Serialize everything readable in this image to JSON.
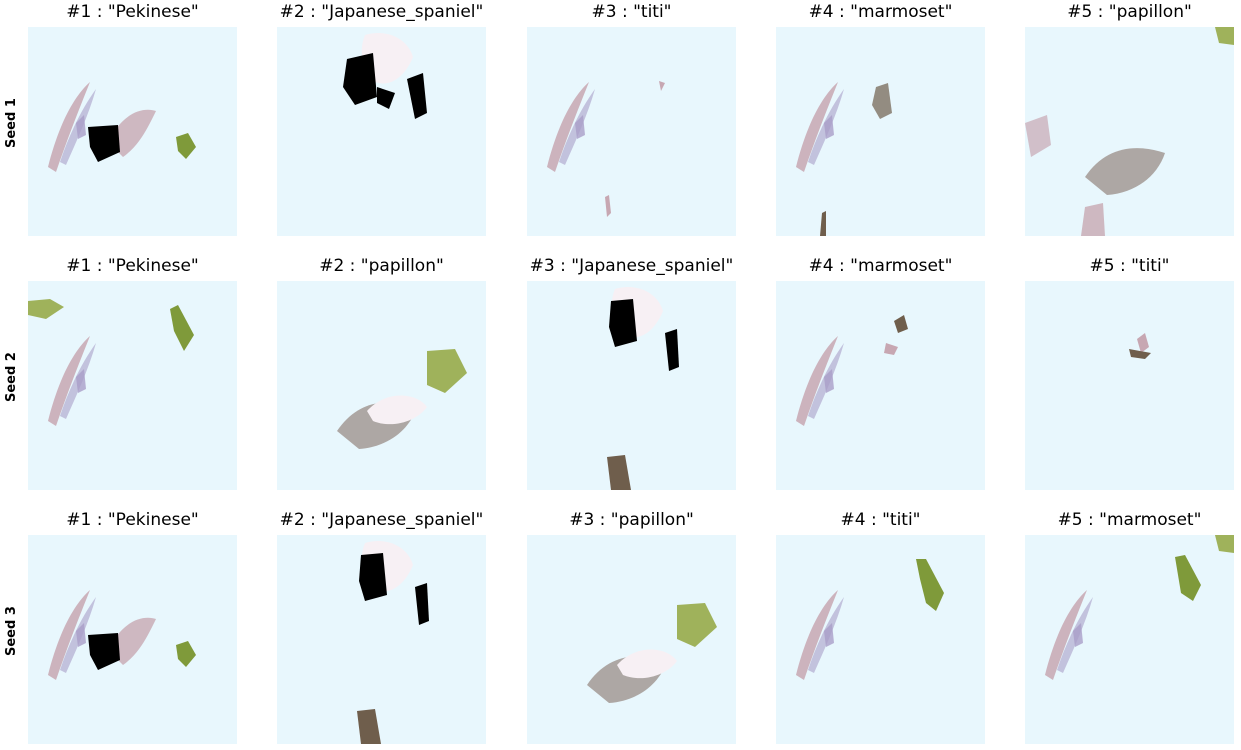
{
  "colors": {
    "panel_background": "#e8f7fd",
    "fur_pink": "#c7a7b2",
    "fur_lavender": "#a99ec8",
    "fur_brown": "#9a8c86",
    "fur_white": "#f7f0f4",
    "foliage_green": "#7f9a3a",
    "foliage_green_light": "#9fb25b",
    "black": "#000000",
    "dark_brown": "#6f5e4c"
  },
  "rows": [
    {
      "label": "Seed 1",
      "cells": [
        {
          "title": "#1 : \"Pekinese\"",
          "image": "pekinese"
        },
        {
          "title": "#2 : \"Japanese_spaniel\"",
          "image": "japanese_spaniel"
        },
        {
          "title": "#3 : \"titi\"",
          "image": "titi"
        },
        {
          "title": "#4 : \"marmoset\"",
          "image": "marmoset"
        },
        {
          "title": "#5 : \"papillon\"",
          "image": "papillon"
        }
      ]
    },
    {
      "label": "Seed 2",
      "cells": [
        {
          "title": "#1 : \"Pekinese\"",
          "image": "pekinese_green"
        },
        {
          "title": "#2 : \"papillon\"",
          "image": "papillon_green"
        },
        {
          "title": "#3 : \"Japanese_spaniel\"",
          "image": "japanese_spaniel_bottom"
        },
        {
          "title": "#4 : \"marmoset\"",
          "image": "marmoset_small"
        },
        {
          "title": "#5 : \"titi\"",
          "image": "titi_small"
        }
      ]
    },
    {
      "label": "Seed 3",
      "cells": [
        {
          "title": "#1 : \"Pekinese\"",
          "image": "pekinese"
        },
        {
          "title": "#2 : \"Japanese_spaniel\"",
          "image": "japanese_spaniel_bottom"
        },
        {
          "title": "#3 : \"papillon\"",
          "image": "papillon_green"
        },
        {
          "title": "#4 : \"titi\"",
          "image": "titi_green"
        },
        {
          "title": "#5 : \"marmoset\"",
          "image": "marmoset_green"
        }
      ]
    }
  ]
}
